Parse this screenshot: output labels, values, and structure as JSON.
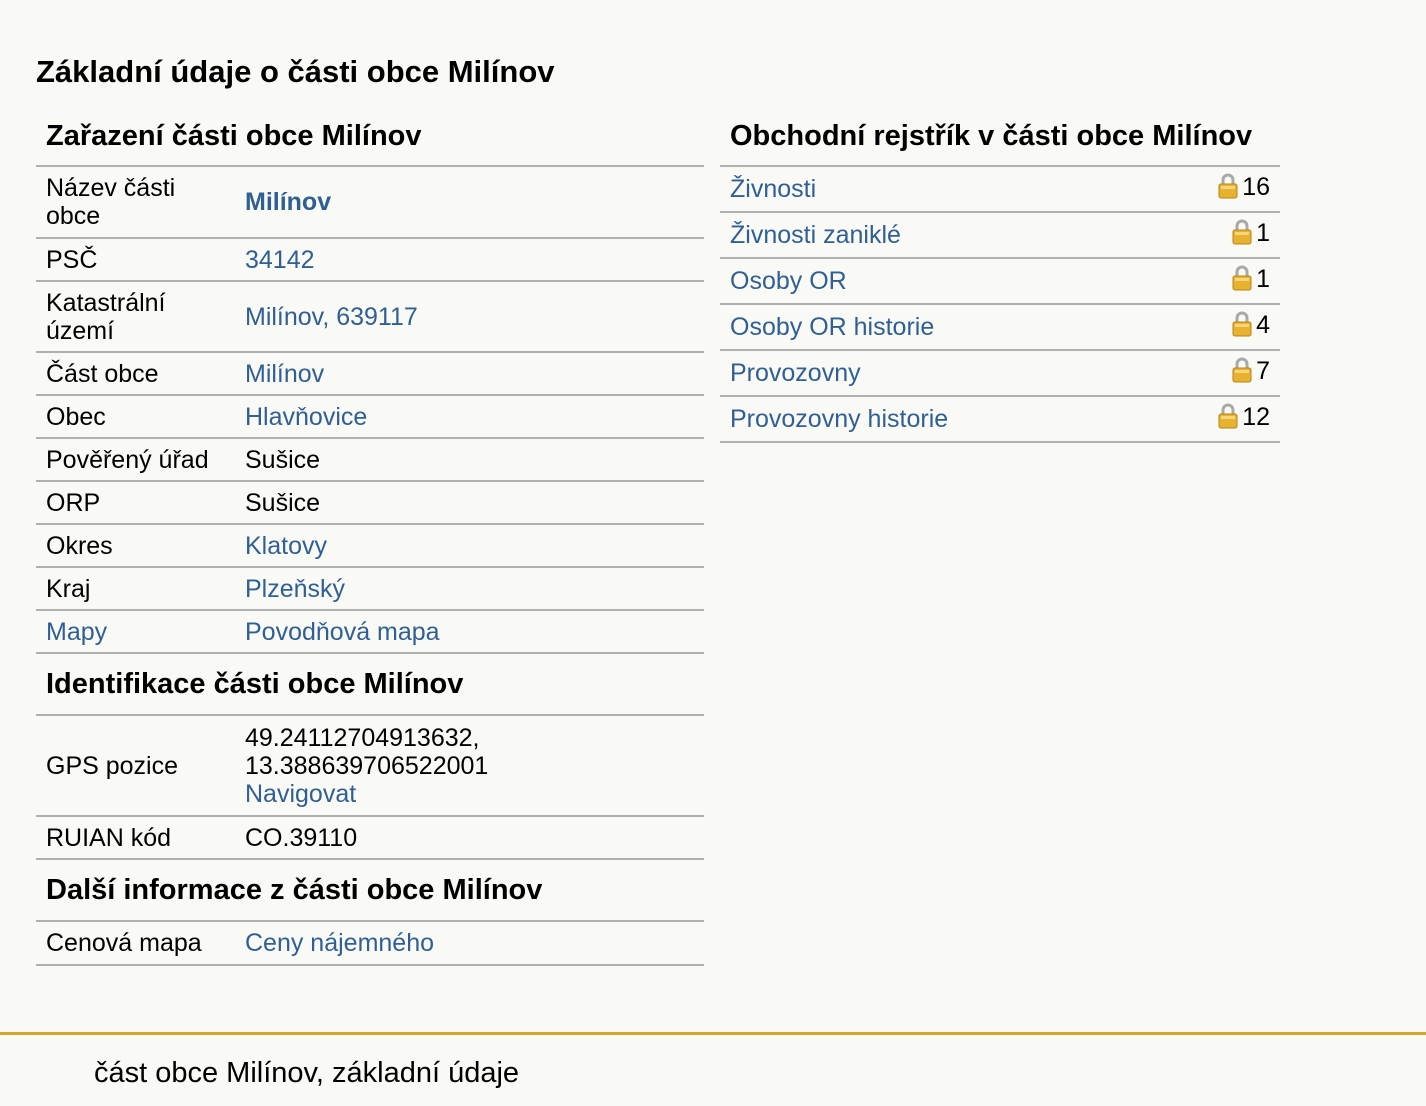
{
  "page_title": "Základní údaje o části obce Milínov",
  "zarazeni": {
    "title": "Zařazení části obce Milínov",
    "rows": [
      {
        "label": "Název části obce",
        "value": "Milínov"
      },
      {
        "label": "PSČ",
        "value": "34142"
      },
      {
        "label": "Katastrální území",
        "value": "Milínov, 639117"
      },
      {
        "label": "Část obce",
        "value": "Milínov"
      },
      {
        "label": "Obec",
        "value": "Hlavňovice"
      },
      {
        "label": "Pověřený úřad",
        "value": "Sušice"
      },
      {
        "label": "ORP",
        "value": "Sušice"
      },
      {
        "label": "Okres",
        "value": "Klatovy"
      },
      {
        "label": "Kraj",
        "value": "Plzeňský"
      },
      {
        "label": "Mapy",
        "value": "Povodňová mapa"
      }
    ]
  },
  "identifikace": {
    "title": "Identifikace části obce Milínov",
    "gps_label": "GPS pozice",
    "gps_lat": "49.24112704913632,",
    "gps_lon": "13.388639706522001",
    "navigate_label": "Navigovat",
    "ruian_label": "RUIAN kód",
    "ruian_value": "CO.39110"
  },
  "dalsi": {
    "title": "Další informace z části obce Milínov",
    "rows": [
      {
        "label": "Cenová mapa",
        "value": "Ceny nájemného"
      }
    ]
  },
  "rejstrik": {
    "title": "Obchodní rejstřík v části obce Milínov",
    "rows": [
      {
        "label": "Živnosti",
        "count": "16",
        "icon": "lock-icon"
      },
      {
        "label": "Živnosti zaniklé",
        "count": "1",
        "icon": "lock-icon"
      },
      {
        "label": "Osoby OR",
        "count": "1",
        "icon": "lock-icon"
      },
      {
        "label": "Osoby OR historie",
        "count": "4",
        "icon": "lock-icon"
      },
      {
        "label": "Provozovny",
        "count": "7",
        "icon": "lock-icon"
      },
      {
        "label": "Provozovny historie",
        "count": "12",
        "icon": "lock-icon"
      }
    ]
  },
  "footer": {
    "text": "část obce Milínov, základní údaje"
  },
  "colors": {
    "link": "#2f5f93",
    "footer_rule": "#d4a52a",
    "background": "#f9f9f6",
    "lock": "#e8b22e"
  }
}
